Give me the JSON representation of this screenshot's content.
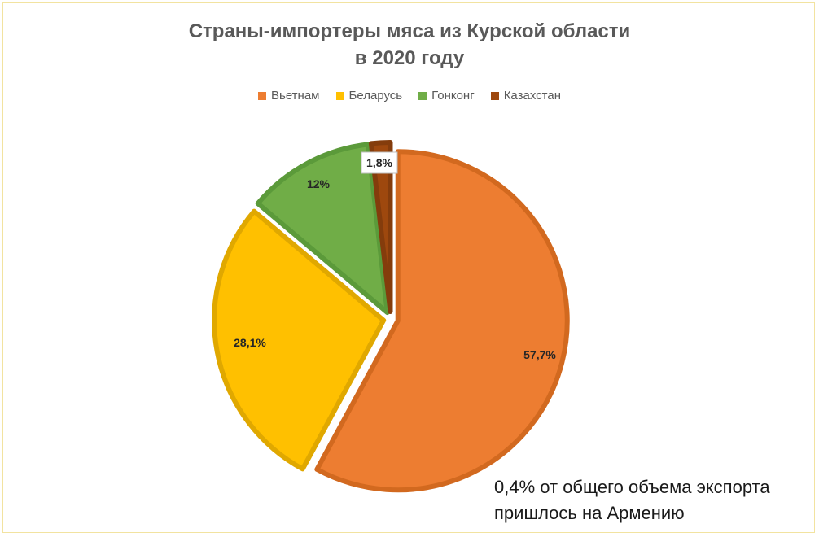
{
  "chart_data": {
    "type": "pie",
    "title": "Страны-импортеры мяса из Курской области в 2020 году",
    "title_lines": [
      "Страны-импортеры мяса из Курской области",
      "в 2020 году"
    ],
    "legend_position": "top",
    "slices": [
      {
        "name": "Вьетнам",
        "value": 57.7,
        "label": "57,7%",
        "color": "#ED7D31",
        "edge": "#D2691F"
      },
      {
        "name": "Беларусь",
        "value": 28.1,
        "label": "28,1%",
        "color": "#FFC000",
        "edge": "#E0A800"
      },
      {
        "name": "Гонконг",
        "value": 12,
        "label": "12%",
        "color": "#70AD47",
        "edge": "#5B9A3A"
      },
      {
        "name": "Казахстан",
        "value": 1.8,
        "label": "1,8%",
        "color": "#9E480E",
        "edge": "#843C0C"
      }
    ],
    "annotation_lines": [
      "0,4% от общего объема экспорта",
      "пришлось на Армению"
    ]
  }
}
